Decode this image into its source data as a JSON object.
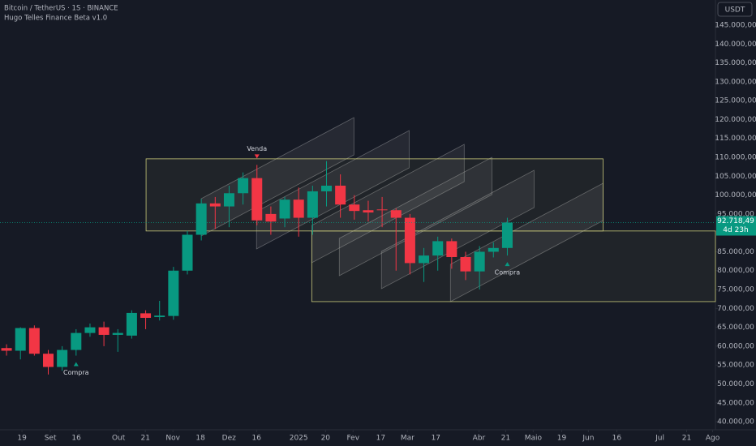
{
  "chart_data": {
    "type": "candlestick",
    "title": "Bitcoin / TetherUS · 1S · BINANCE",
    "subtitle": "Hugo Telles Finance Beta v1.0",
    "currency": "USDT",
    "up_color": "#089981",
    "down_color": "#f23645",
    "open": [
      59500,
      58800,
      64800,
      58000,
      54500,
      59000,
      63500,
      65000,
      63000,
      62800,
      68700,
      67700,
      68000,
      80000,
      89500,
      97800,
      97000,
      100500,
      104500,
      95000,
      93800,
      98800,
      94000,
      101000,
      102500,
      97500,
      96000,
      96200,
      96000,
      94000,
      82000,
      84000,
      87800,
      83600,
      79800,
      85000,
      86000
    ],
    "high": [
      60500,
      65000,
      65500,
      59000,
      60000,
      64500,
      66000,
      66500,
      64500,
      69500,
      69500,
      72000,
      81000,
      90500,
      99000,
      99500,
      102500,
      106000,
      108000,
      97000,
      99500,
      102000,
      102500,
      109000,
      105500,
      100000,
      98500,
      99500,
      96500,
      95000,
      86000,
      89000,
      88500,
      85000,
      86500,
      87500,
      94000
    ],
    "low": [
      57500,
      56500,
      57500,
      52500,
      53500,
      57500,
      62500,
      60000,
      58500,
      62000,
      64500,
      66800,
      67000,
      79000,
      88000,
      91000,
      91500,
      97500,
      92000,
      89500,
      91500,
      89000,
      89500,
      97000,
      94000,
      93500,
      93000,
      91500,
      80000,
      79000,
      77000,
      80000,
      80500,
      77500,
      75000,
      83500,
      84000
    ],
    "close": [
      58800,
      64800,
      58000,
      54500,
      59000,
      63500,
      65000,
      63000,
      63500,
      68800,
      67500,
      68100,
      80000,
      89500,
      97800,
      97000,
      100500,
      104500,
      93300,
      93000,
      98800,
      94000,
      101000,
      102500,
      97500,
      95800,
      95400,
      96000,
      94000,
      82000,
      84000,
      87800,
      83600,
      79800,
      85000,
      86000,
      92718.49
    ],
    "last_price": {
      "value": 92718.49,
      "label": "92.718,49"
    },
    "countdown": "4d 23h",
    "xlim": [
      -0.47,
      50.96
    ],
    "ylim": [
      37865,
      151656
    ],
    "xticks": [
      {
        "value": 1.11,
        "label": "19"
      },
      {
        "value": 3.15,
        "label": "Set"
      },
      {
        "value": 5.02,
        "label": "16"
      },
      {
        "value": 8.05,
        "label": "Out"
      },
      {
        "value": 9.98,
        "label": "21"
      },
      {
        "value": 11.96,
        "label": "Nov"
      },
      {
        "value": 13.94,
        "label": "18"
      },
      {
        "value": 15.99,
        "label": "Dez"
      },
      {
        "value": 17.97,
        "label": "16"
      },
      {
        "value": 21.0,
        "label": "2025"
      },
      {
        "value": 22.93,
        "label": "20"
      },
      {
        "value": 24.91,
        "label": "Fev"
      },
      {
        "value": 26.9,
        "label": "17"
      },
      {
        "value": 28.82,
        "label": "Mar"
      },
      {
        "value": 30.86,
        "label": "17"
      },
      {
        "value": 33.96,
        "label": "Abr"
      },
      {
        "value": 35.88,
        "label": "21"
      },
      {
        "value": 37.86,
        "label": "Maio"
      },
      {
        "value": 39.91,
        "label": "19"
      },
      {
        "value": 41.83,
        "label": "Jun"
      },
      {
        "value": 43.87,
        "label": "16"
      },
      {
        "value": 46.97,
        "label": "Jul"
      },
      {
        "value": 48.89,
        "label": "21"
      },
      {
        "value": 50.76,
        "label": "Ago"
      }
    ],
    "yticks": [
      {
        "value": 145000,
        "label": "145.000,00"
      },
      {
        "value": 140000,
        "label": "140.000,00"
      },
      {
        "value": 135000,
        "label": "135.000,00"
      },
      {
        "value": 130000,
        "label": "130.000,00"
      },
      {
        "value": 125000,
        "label": "125.000,00"
      },
      {
        "value": 120000,
        "label": "120.000,00"
      },
      {
        "value": 115000,
        "label": "115.000,00"
      },
      {
        "value": 110000,
        "label": "110.000,00"
      },
      {
        "value": 105000,
        "label": "105.000,00"
      },
      {
        "value": 100000,
        "label": "100.000,00"
      },
      {
        "value": 95000,
        "label": "95.000,00"
      },
      {
        "value": 90000,
        "label": "90.000,00"
      },
      {
        "value": 85000,
        "label": "85.000,00"
      },
      {
        "value": 80000,
        "label": "80.000,00"
      },
      {
        "value": 75000,
        "label": "75.000,00"
      },
      {
        "value": 70000,
        "label": "70.000,00"
      },
      {
        "value": 65000,
        "label": "65.000,00"
      },
      {
        "value": 60000,
        "label": "60.000,00"
      },
      {
        "value": 55000,
        "label": "55.000,00"
      },
      {
        "value": 50000,
        "label": "50.000,00"
      },
      {
        "value": 45000,
        "label": "45.000,00"
      },
      {
        "value": 40000,
        "label": "40.000,00"
      }
    ],
    "zones": [
      {
        "x": [
          10.03,
          42.88
        ],
        "y": [
          90500,
          109600
        ],
        "color": "#c8c87a"
      },
      {
        "x": [
          21.94,
          50.96
        ],
        "y": [
          71800,
          90500
        ],
        "color": "#c8c87a"
      }
    ],
    "channels": [
      {
        "x": [
          14.0,
          24.97
        ],
        "top": [
          99060,
          120524
        ],
        "bottom": [
          89180,
          110650
        ]
      },
      {
        "x": [
          17.97,
          28.94
        ],
        "top": [
          95620,
          117090
        ],
        "bottom": [
          85740,
          107210
        ]
      },
      {
        "x": [
          21.94,
          32.9
        ],
        "top": [
          91970,
          113440
        ],
        "bottom": [
          82090,
          103560
        ]
      },
      {
        "x": [
          23.92,
          34.89
        ],
        "top": [
          88540,
          110004
        ],
        "bottom": [
          78660,
          100130
        ]
      },
      {
        "x": [
          26.95,
          37.92
        ],
        "top": [
          85100,
          106570
        ],
        "bottom": [
          75220,
          96690
        ]
      },
      {
        "x": [
          31.91,
          42.88
        ],
        "top": [
          81670,
          103130
        ],
        "bottom": [
          71790,
          93260
        ]
      }
    ],
    "signals": [
      {
        "at": 5,
        "label": "Compra",
        "side": "buy"
      },
      {
        "at": 18,
        "label": "Venda",
        "side": "sell"
      },
      {
        "at": 36,
        "label": "Compra",
        "side": "buy"
      }
    ]
  }
}
